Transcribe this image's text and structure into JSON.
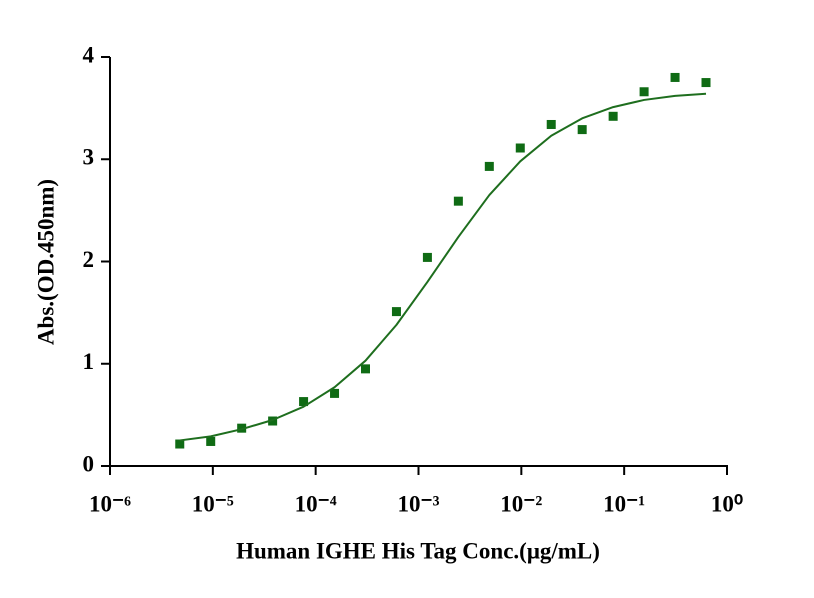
{
  "chart_data": {
    "type": "scatter",
    "x_label": "Human IGHE His Tag Conc.(μg/mL)",
    "y_label": "Abs.(OD.450nm)",
    "x": [
      4.76837158203125e-06,
      9.5367431640625e-06,
      1.9073486328125e-05,
      3.814697265625e-05,
      7.62939453125e-05,
      0.000152587890625,
      0.00030517578125,
      0.0006103515625,
      0.001220703125,
      0.00244140625,
      0.0048828125,
      0.009765625,
      0.01953125,
      0.0390625,
      0.078125,
      0.15625,
      0.3125,
      0.625
    ],
    "series": [
      {
        "style": "marker",
        "color": "#0f6b14",
        "values": [
          0.215,
          0.24,
          0.37,
          0.44,
          0.63,
          0.71,
          0.95,
          1.51,
          2.04,
          2.59,
          2.93,
          3.11,
          3.34,
          3.29,
          3.42,
          3.66,
          3.8,
          3.75
        ]
      },
      {
        "style": "line",
        "color": "#1e6e1e",
        "values": [
          0.25,
          0.29,
          0.36,
          0.45,
          0.58,
          0.77,
          1.03,
          1.38,
          1.8,
          2.24,
          2.65,
          2.98,
          3.23,
          3.4,
          3.51,
          3.58,
          3.62,
          3.64
        ]
      }
    ],
    "xscale": "log",
    "xlim": [
      1e-06,
      1
    ],
    "xticks": [
      {
        "value": 1e-06,
        "label": "10⁻⁶"
      },
      {
        "value": 1e-05,
        "label": "10⁻⁵"
      },
      {
        "value": 0.0001,
        "label": "10⁻⁴"
      },
      {
        "value": 0.001,
        "label": "10⁻³"
      },
      {
        "value": 0.01,
        "label": "10⁻²"
      },
      {
        "value": 0.1,
        "label": "10⁻¹"
      },
      {
        "value": 1,
        "label": "10⁰"
      }
    ],
    "ylim": [
      0,
      4
    ],
    "yticks": [
      0,
      1,
      2,
      3,
      4
    ],
    "grid": false
  }
}
